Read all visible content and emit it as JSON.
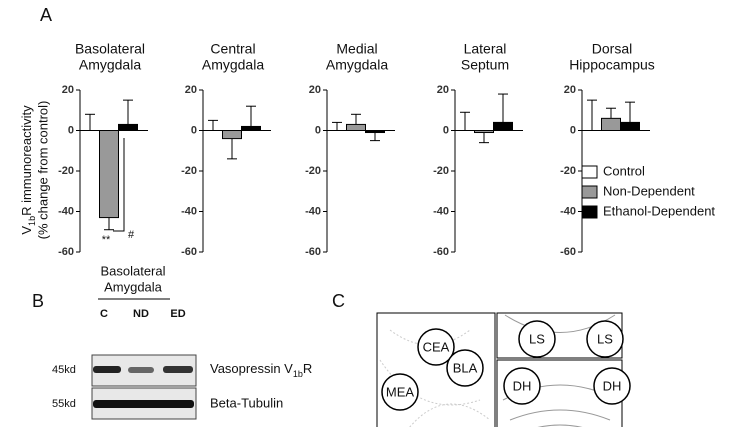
{
  "panel_labels": [
    "A",
    "B",
    "C"
  ],
  "chart_data": {
    "type": "bar",
    "categories": [
      [
        "Basolateral",
        "Amygdala"
      ],
      [
        "Central",
        "Amygdala"
      ],
      [
        "Medial",
        "Amygdala"
      ],
      [
        "Lateral",
        "Septum"
      ],
      [
        "Dorsal",
        "Hippocampus"
      ]
    ],
    "y_label": {
      "main": "V",
      "sub": "1b",
      "rest": "R immunoreactivity",
      "line2": "(% change from control)"
    },
    "ylim": [
      -60,
      20
    ],
    "yticks": [
      -60,
      -40,
      -20,
      0,
      20
    ],
    "series": [
      {
        "name": "Control",
        "color": "#ffffff",
        "values": [
          0,
          0,
          0,
          0,
          0
        ],
        "errors": [
          8,
          5,
          4,
          9,
          15
        ]
      },
      {
        "name": "Non-Dependent",
        "color": "#999999",
        "values": [
          -43,
          -4,
          3,
          -1,
          6
        ],
        "errors": [
          6,
          10,
          5,
          5,
          5
        ]
      },
      {
        "name": "Ethanol-Dependent",
        "color": "#000000",
        "values": [
          3,
          2,
          -1,
          4,
          4
        ],
        "errors": [
          12,
          10,
          4,
          14,
          10
        ]
      }
    ],
    "annotations": [
      "**",
      "#"
    ]
  },
  "blot": {
    "header": [
      "Basolateral",
      "Amygdala"
    ],
    "lanes": [
      "C",
      "ND",
      "ED"
    ],
    "rows": [
      {
        "size": "45kd",
        "label": "Vasopressin V",
        "sub": "1b",
        "label_end": "R"
      },
      {
        "size": "55kd",
        "label": "Beta-Tubulin"
      }
    ]
  },
  "diagram": {
    "regions": [
      "CEA",
      "BLA",
      "MEA",
      "LS",
      "LS",
      "DH",
      "DH"
    ]
  }
}
